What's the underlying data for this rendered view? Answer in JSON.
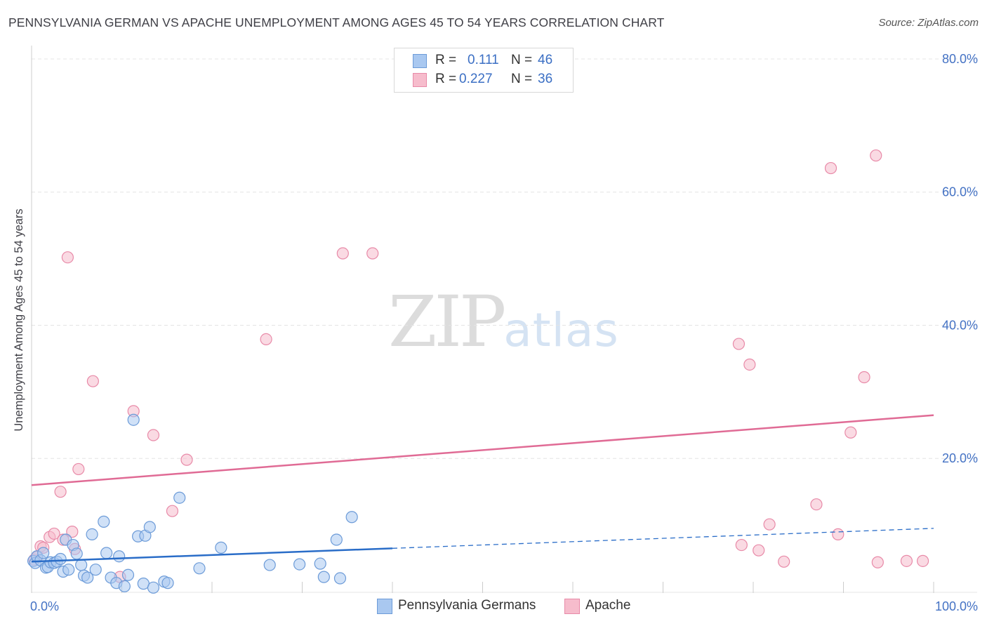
{
  "header": {
    "title": "PENNSYLVANIA GERMAN VS APACHE UNEMPLOYMENT AMONG AGES 45 TO 54 YEARS CORRELATION CHART",
    "source": "Source: ZipAtlas.com"
  },
  "watermark": {
    "zip": "ZIP",
    "atlas": "atlas"
  },
  "legend": {
    "rows": [
      {
        "r_label": "R =",
        "r_value": "0.111",
        "n_label": "N =",
        "n_value": "46"
      },
      {
        "r_label": "R =",
        "r_value": "0.227",
        "n_label": "N =",
        "n_value": "36"
      }
    ]
  },
  "bottom_legend": {
    "series_a": "Pennsylvania Germans",
    "series_b": "Apache"
  },
  "colors": {
    "blue_fill": "#a9c8f0",
    "blue_stroke": "#6c9bd8",
    "blue_line": "#2a6dc8",
    "pink_fill": "#f6bccc",
    "pink_stroke": "#e88aa8",
    "pink_line": "#e06b95",
    "tick_text": "#4472c4",
    "grid": "#e4e4e4"
  },
  "chart_data": {
    "type": "scatter",
    "title": "PENNSYLVANIA GERMAN VS APACHE UNEMPLOYMENT AMONG AGES 45 TO 54 YEARS CORRELATION CHART",
    "xlabel": "",
    "ylabel": "Unemployment Among Ages 45 to 54 years",
    "xlim": [
      0,
      100
    ],
    "ylim": [
      0,
      82
    ],
    "x_tick_labels": [
      {
        "value": 0,
        "label": "0.0%"
      },
      {
        "value": 100,
        "label": "100.0%"
      }
    ],
    "y_tick_labels": [
      {
        "value": 20,
        "label": "20.0%"
      },
      {
        "value": 40,
        "label": "40.0%"
      },
      {
        "value": 60,
        "label": "60.0%"
      },
      {
        "value": 80,
        "label": "80.0%"
      }
    ],
    "grid": true,
    "legend_position": "top-center",
    "series": [
      {
        "name": "Pennsylvania Germans",
        "R": 0.111,
        "N": 46,
        "points": [
          [
            0.2,
            4.6
          ],
          [
            0.4,
            4.3
          ],
          [
            0.6,
            5.3
          ],
          [
            1.0,
            4.7
          ],
          [
            1.3,
            5.8
          ],
          [
            1.6,
            3.6
          ],
          [
            1.8,
            3.7
          ],
          [
            2.1,
            4.4
          ],
          [
            2.5,
            4.3
          ],
          [
            2.8,
            4.5
          ],
          [
            3.2,
            4.9
          ],
          [
            3.5,
            3.0
          ],
          [
            3.8,
            7.8
          ],
          [
            4.1,
            3.3
          ],
          [
            4.6,
            7.0
          ],
          [
            5.0,
            5.7
          ],
          [
            5.5,
            4.0
          ],
          [
            5.8,
            2.4
          ],
          [
            6.2,
            2.1
          ],
          [
            6.7,
            8.6
          ],
          [
            7.1,
            3.3
          ],
          [
            8.0,
            10.5
          ],
          [
            8.8,
            2.1
          ],
          [
            9.4,
            1.3
          ],
          [
            8.3,
            5.8
          ],
          [
            9.7,
            5.3
          ],
          [
            10.3,
            0.8
          ],
          [
            10.7,
            2.5
          ],
          [
            11.3,
            25.8
          ],
          [
            11.8,
            8.3
          ],
          [
            12.4,
            1.2
          ],
          [
            12.6,
            8.4
          ],
          [
            13.1,
            9.7
          ],
          [
            13.5,
            0.6
          ],
          [
            14.7,
            1.5
          ],
          [
            15.1,
            1.3
          ],
          [
            16.4,
            14.1
          ],
          [
            18.6,
            3.5
          ],
          [
            21.0,
            6.6
          ],
          [
            26.4,
            4.0
          ],
          [
            29.7,
            4.1
          ],
          [
            32.0,
            4.2
          ],
          [
            32.4,
            2.2
          ],
          [
            33.8,
            7.8
          ],
          [
            34.2,
            2.0
          ],
          [
            35.5,
            11.2
          ]
        ],
        "trend_solid": {
          "x": [
            0,
            40
          ],
          "y": [
            4.5,
            6.5
          ]
        },
        "trend_dashed": {
          "x": [
            40,
            100
          ],
          "y": [
            6.5,
            9.5
          ]
        }
      },
      {
        "name": "Apache",
        "R": 0.227,
        "N": 36,
        "points": [
          [
            0.3,
            4.8
          ],
          [
            0.6,
            5.2
          ],
          [
            1.0,
            6.8
          ],
          [
            1.3,
            6.6
          ],
          [
            2.0,
            8.2
          ],
          [
            2.5,
            8.7
          ],
          [
            3.2,
            15.0
          ],
          [
            4.0,
            50.2
          ],
          [
            3.5,
            7.8
          ],
          [
            4.5,
            9.0
          ],
          [
            4.8,
            6.4
          ],
          [
            5.2,
            18.4
          ],
          [
            6.8,
            31.6
          ],
          [
            9.8,
            2.2
          ],
          [
            11.3,
            27.1
          ],
          [
            13.5,
            23.5
          ],
          [
            15.6,
            12.1
          ],
          [
            17.2,
            19.8
          ],
          [
            26.0,
            37.9
          ],
          [
            34.5,
            50.8
          ],
          [
            37.8,
            50.8
          ],
          [
            78.4,
            37.2
          ],
          [
            78.7,
            7.0
          ],
          [
            79.6,
            34.1
          ],
          [
            80.6,
            6.2
          ],
          [
            81.8,
            10.1
          ],
          [
            83.4,
            4.5
          ],
          [
            87.0,
            13.1
          ],
          [
            88.6,
            63.6
          ],
          [
            89.4,
            8.6
          ],
          [
            90.8,
            23.9
          ],
          [
            92.3,
            32.2
          ],
          [
            93.6,
            65.5
          ],
          [
            93.8,
            4.4
          ],
          [
            97.0,
            4.6
          ],
          [
            98.8,
            4.6
          ]
        ],
        "trend_solid": {
          "x": [
            0,
            100
          ],
          "y": [
            16.0,
            26.5
          ]
        }
      }
    ]
  }
}
